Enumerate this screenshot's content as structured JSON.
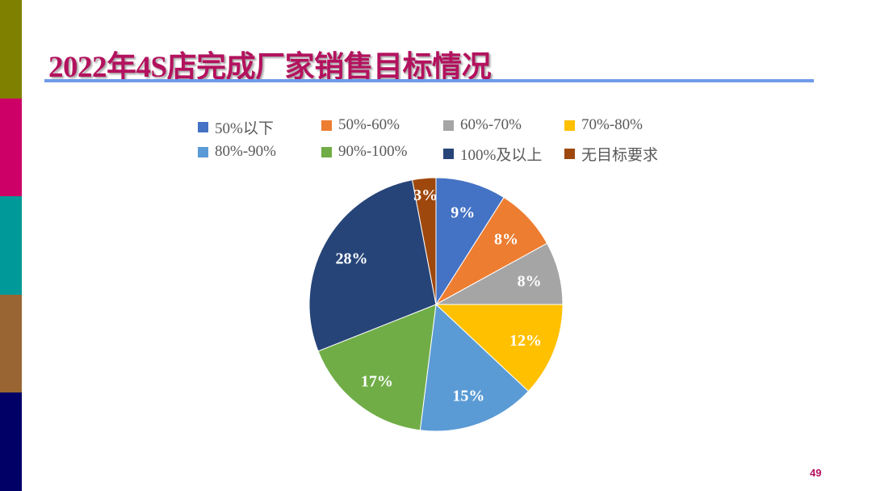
{
  "sidebar_colors": [
    "#808000",
    "#CC0066",
    "#009999",
    "#996633",
    "#000066"
  ],
  "title": "2022年4S店完成厂家销售目标情况",
  "page_number": "49",
  "chart_data": {
    "type": "pie",
    "title": "2022年4S店完成厂家销售目标情况",
    "legend_position": "top",
    "categories": [
      "50%以下",
      "50%-60%",
      "60%-70%",
      "70%-80%",
      "80%-90%",
      "90%-100%",
      "100%及以上",
      "无目标要求"
    ],
    "values": [
      9,
      8,
      8,
      12,
      15,
      17,
      28,
      3
    ],
    "labels": [
      "9%",
      "8%",
      "8%",
      "12%",
      "15%",
      "17%",
      "28%",
      "3%"
    ],
    "colors": [
      "#4472C4",
      "#ED7D31",
      "#A5A5A5",
      "#FFC000",
      "#5B9BD5",
      "#70AD47",
      "#264478",
      "#9E480E"
    ]
  }
}
